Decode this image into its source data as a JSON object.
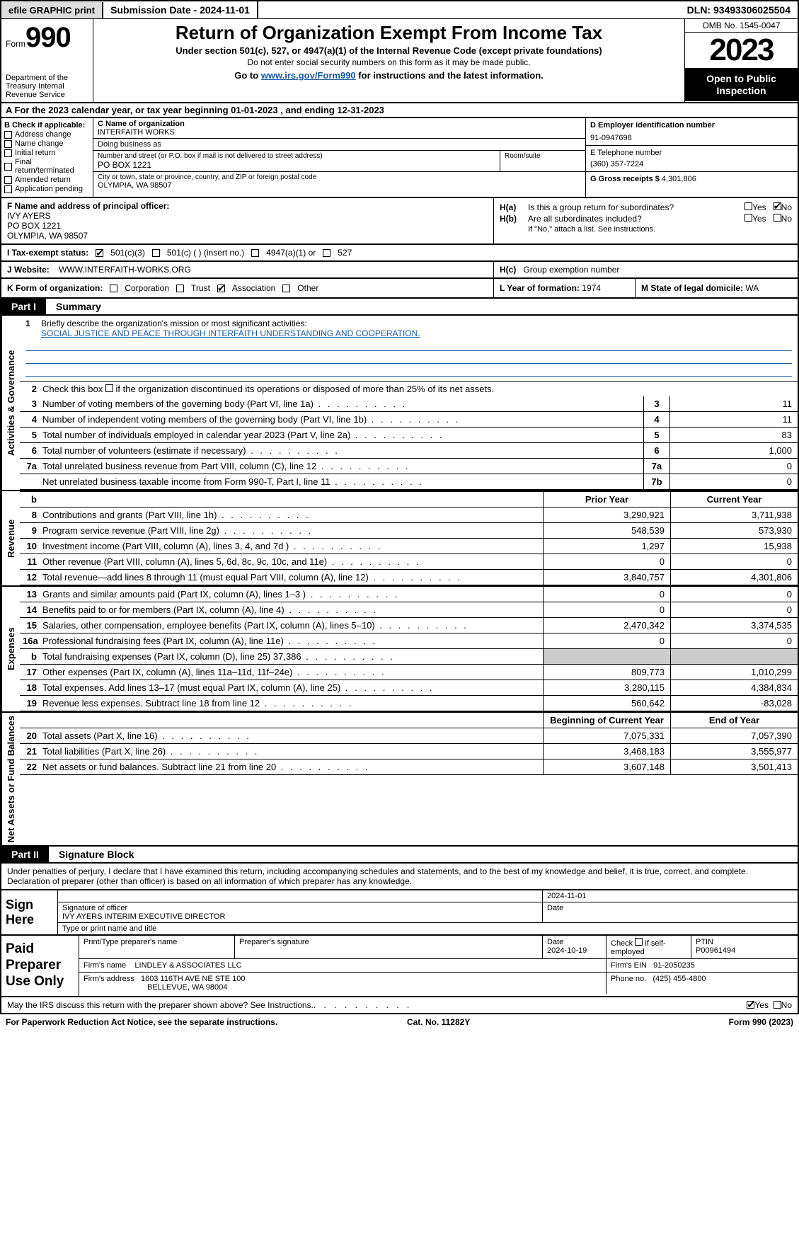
{
  "topbar": {
    "efile": "efile GRAPHIC print",
    "submission": "Submission Date - 2024-11-01",
    "dln": "DLN: 93493306025504"
  },
  "header": {
    "form_word": "Form",
    "form_num": "990",
    "title": "Return of Organization Exempt From Income Tax",
    "sub1": "Under section 501(c), 527, or 4947(a)(1) of the Internal Revenue Code (except private foundations)",
    "sub2": "Do not enter social security numbers on this form as it may be made public.",
    "sub3_a": "Go to ",
    "sub3_link": "www.irs.gov/Form990",
    "sub3_b": " for instructions and the latest information.",
    "dept": "Department of the Treasury Internal Revenue Service",
    "omb": "OMB No. 1545-0047",
    "year": "2023",
    "opi": "Open to Public Inspection"
  },
  "A": "A For the 2023 calendar year, or tax year beginning 01-01-2023    , and ending 12-31-2023",
  "B": {
    "label": "B Check if applicable:",
    "opts": [
      "Address change",
      "Name change",
      "Initial return",
      "Final return/terminated",
      "Amended return",
      "Application pending"
    ]
  },
  "C": {
    "name_label": "C Name of organization",
    "name": "INTERFAITH WORKS",
    "dba_label": "Doing business as",
    "dba": "",
    "street_label": "Number and street (or P.O. box if mail is not delivered to street address)",
    "street": "PO BOX 1221",
    "room_label": "Room/suite",
    "room": "",
    "city_label": "City or town, state or province, country, and ZIP or foreign postal code",
    "city": "OLYMPIA, WA  98507"
  },
  "D": {
    "label": "D Employer identification number",
    "value": "91-0947698"
  },
  "E": {
    "label": "E Telephone number",
    "value": "(360) 357-7224"
  },
  "G": {
    "label": "G Gross receipts $",
    "value": "4,301,806"
  },
  "F": {
    "label": "F  Name and address of principal officer:",
    "name": "IVY AYERS",
    "addr1": "PO BOX 1221",
    "addr2": "OLYMPIA, WA  98507"
  },
  "H": {
    "a_lab": "H(a)",
    "a_txt": "Is this a group return for subordinates?",
    "b_lab": "H(b)",
    "b_txt": "Are all subordinates included?",
    "b_note": "If \"No,\" attach a list. See instructions.",
    "c_lab": "H(c)",
    "c_txt": "Group exemption number",
    "yes": "Yes",
    "no": "No"
  },
  "I": {
    "label": "I  Tax-exempt status:",
    "o1": "501(c)(3)",
    "o2": "501(c) (  ) (insert no.)",
    "o3": "4947(a)(1) or",
    "o4": "527"
  },
  "J": {
    "label": "J  Website:",
    "value": "WWW.INTERFAITH-WORKS.ORG"
  },
  "K": {
    "label": "K Form of organization:",
    "opts": [
      "Corporation",
      "Trust",
      "Association",
      "Other"
    ]
  },
  "L": {
    "label": "L Year of formation:",
    "value": "1974"
  },
  "M": {
    "label": "M State of legal domicile:",
    "value": "WA"
  },
  "part1": {
    "num": "Part I",
    "title": "Summary",
    "q1_label": "1",
    "q1": "Briefly describe the organization's mission or most significant activities:",
    "q1_val": "SOCIAL JUSTICE AND PEACE THROUGH INTERFAITH UNDERSTANDING AND COOPERATION.",
    "q2_n": "2",
    "q2": "Check this box        if the organization discontinued its operations or disposed of more than 25% of its net assets.",
    "lines_gov": [
      {
        "n": "3",
        "d": "Number of voting members of the governing body (Part VI, line 1a)",
        "ln": "3",
        "v": "11"
      },
      {
        "n": "4",
        "d": "Number of independent voting members of the governing body (Part VI, line 1b)",
        "ln": "4",
        "v": "11"
      },
      {
        "n": "5",
        "d": "Total number of individuals employed in calendar year 2023 (Part V, line 2a)",
        "ln": "5",
        "v": "83"
      },
      {
        "n": "6",
        "d": "Total number of volunteers (estimate if necessary)",
        "ln": "6",
        "v": "1,000"
      },
      {
        "n": "7a",
        "d": "Total unrelated business revenue from Part VIII, column (C), line 12",
        "ln": "7a",
        "v": "0"
      },
      {
        "n": "",
        "d": "Net unrelated business taxable income from Form 990-T, Part I, line 11",
        "ln": "7b",
        "v": "0"
      }
    ],
    "hdr_b": "b",
    "hdr_py": "Prior Year",
    "hdr_cy": "Current Year",
    "lines_rev": [
      {
        "n": "8",
        "d": "Contributions and grants (Part VIII, line 1h)",
        "py": "3,290,921",
        "cy": "3,711,938"
      },
      {
        "n": "9",
        "d": "Program service revenue (Part VIII, line 2g)",
        "py": "548,539",
        "cy": "573,930"
      },
      {
        "n": "10",
        "d": "Investment income (Part VIII, column (A), lines 3, 4, and 7d )",
        "py": "1,297",
        "cy": "15,938"
      },
      {
        "n": "11",
        "d": "Other revenue (Part VIII, column (A), lines 5, 6d, 8c, 9c, 10c, and 11e)",
        "py": "0",
        "cy": "0"
      },
      {
        "n": "12",
        "d": "Total revenue—add lines 8 through 11 (must equal Part VIII, column (A), line 12)",
        "py": "3,840,757",
        "cy": "4,301,806"
      }
    ],
    "lines_exp": [
      {
        "n": "13",
        "d": "Grants and similar amounts paid (Part IX, column (A), lines 1–3 )",
        "py": "0",
        "cy": "0"
      },
      {
        "n": "14",
        "d": "Benefits paid to or for members (Part IX, column (A), line 4)",
        "py": "0",
        "cy": "0"
      },
      {
        "n": "15",
        "d": "Salaries, other compensation, employee benefits (Part IX, column (A), lines 5–10)",
        "py": "2,470,342",
        "cy": "3,374,535"
      },
      {
        "n": "16a",
        "d": "Professional fundraising fees (Part IX, column (A), line 11e)",
        "py": "0",
        "cy": "0"
      },
      {
        "n": "b",
        "d": "Total fundraising expenses (Part IX, column (D), line 25) 37,386",
        "py": "",
        "cy": "",
        "grey": true
      },
      {
        "n": "17",
        "d": "Other expenses (Part IX, column (A), lines 11a–11d, 11f–24e)",
        "py": "809,773",
        "cy": "1,010,299"
      },
      {
        "n": "18",
        "d": "Total expenses. Add lines 13–17 (must equal Part IX, column (A), line 25)",
        "py": "3,280,115",
        "cy": "4,384,834"
      },
      {
        "n": "19",
        "d": "Revenue less expenses. Subtract line 18 from line 12",
        "py": "560,642",
        "cy": "-83,028"
      }
    ],
    "hdr2_py": "Beginning of Current Year",
    "hdr2_cy": "End of Year",
    "lines_net": [
      {
        "n": "20",
        "d": "Total assets (Part X, line 16)",
        "py": "7,075,331",
        "cy": "7,057,390"
      },
      {
        "n": "21",
        "d": "Total liabilities (Part X, line 26)",
        "py": "3,468,183",
        "cy": "3,555,977"
      },
      {
        "n": "22",
        "d": "Net assets or fund balances. Subtract line 21 from line 20",
        "py": "3,607,148",
        "cy": "3,501,413"
      }
    ],
    "vtab_gov": "Activities & Governance",
    "vtab_rev": "Revenue",
    "vtab_exp": "Expenses",
    "vtab_net": "Net Assets or Fund Balances"
  },
  "part2": {
    "num": "Part II",
    "title": "Signature Block",
    "decl": "Under penalties of perjury, I declare that I have examined this return, including accompanying schedules and statements, and to the best of my knowledge and belief, it is true, correct, and complete. Declaration of preparer (other than officer) is based on all information of which preparer has any knowledge."
  },
  "sign": {
    "label": "Sign Here",
    "date": "2024-11-01",
    "sig_label": "Signature of officer",
    "date_label": "Date",
    "name": "IVY AYERS INTERIM EXECUTIVE DIRECTOR",
    "name_label": "Type or print name and title"
  },
  "paid": {
    "label": "Paid Preparer Use Only",
    "h1": "Print/Type preparer's name",
    "h2": "Preparer's signature",
    "h3": "Date",
    "date": "2024-10-19",
    "h4a": "Check",
    "h4b": "if self-employed",
    "h5": "PTIN",
    "ptin": "P00961494",
    "firm_label": "Firm's name",
    "firm": "LINDLEY & ASSOCIATES LLC",
    "ein_label": "Firm's EIN",
    "ein": "91-2050235",
    "addr_label": "Firm's address",
    "addr1": "1603 116TH AVE NE STE 100",
    "addr2": "BELLEVUE, WA  98004",
    "phone_label": "Phone no.",
    "phone": "(425) 455-4800"
  },
  "irs_discuss": {
    "txt": "May the IRS discuss this return with the preparer shown above? See Instructions.",
    "yes": "Yes",
    "no": "No"
  },
  "footer": {
    "left": "For Paperwork Reduction Act Notice, see the separate instructions.",
    "mid": "Cat. No. 11282Y",
    "right_a": "Form ",
    "right_b": "990",
    "right_c": " (2023)"
  }
}
